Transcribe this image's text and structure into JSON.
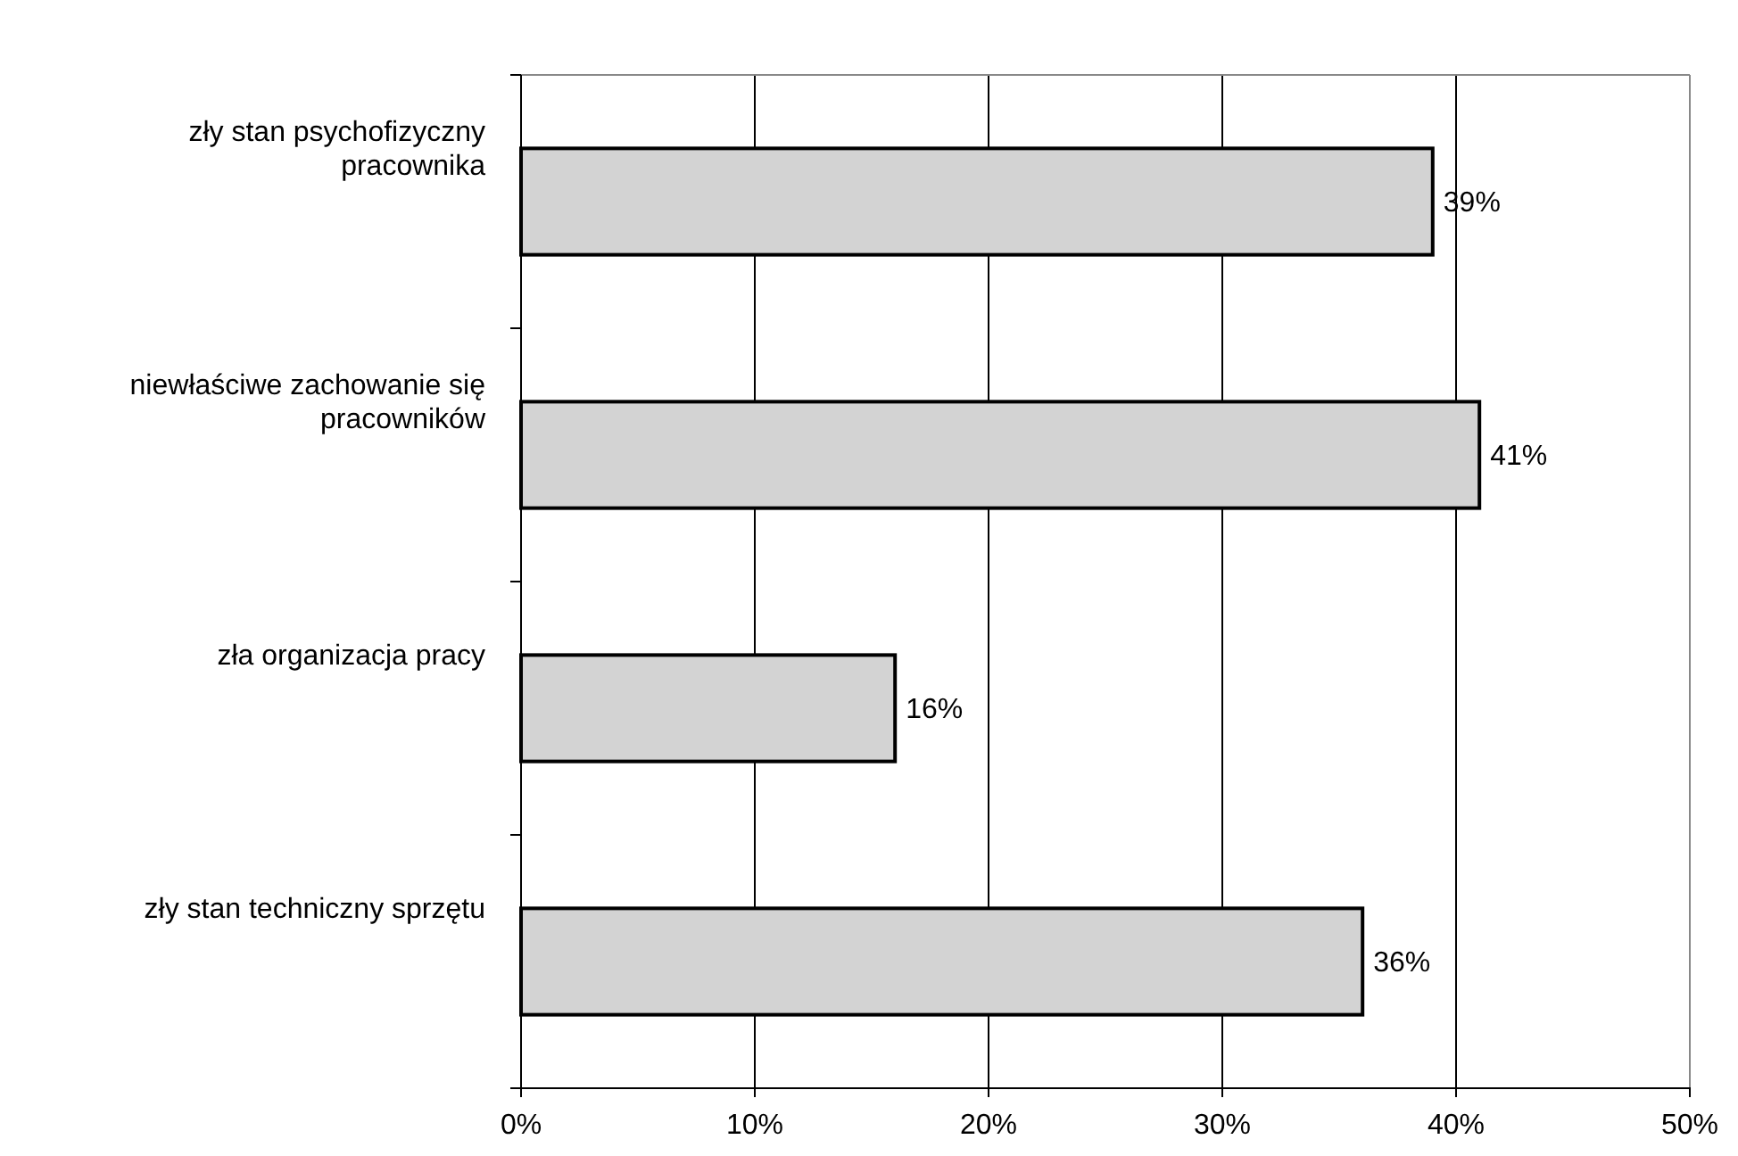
{
  "chart_data": {
    "type": "bar",
    "orientation": "horizontal",
    "categories": [
      "zły stan psychofizyczny pracownika",
      "niewłaściwe zachowanie się pracowników",
      "zła organizacja pracy",
      "zły stan techniczny sprzętu"
    ],
    "values": [
      39,
      41,
      16,
      36
    ],
    "color": "#d3d3d3",
    "xlim": [
      0,
      50
    ],
    "xticks": [
      {
        "value": 0,
        "label": "0%"
      },
      {
        "value": 10,
        "label": "10%"
      },
      {
        "value": 20,
        "label": "20%"
      },
      {
        "value": 30,
        "label": "30%"
      },
      {
        "value": 40,
        "label": "40%"
      },
      {
        "value": 50,
        "label": "50%"
      }
    ],
    "value_labels": [
      "39%",
      "41%",
      "16%",
      "36%"
    ],
    "grid": "x"
  }
}
